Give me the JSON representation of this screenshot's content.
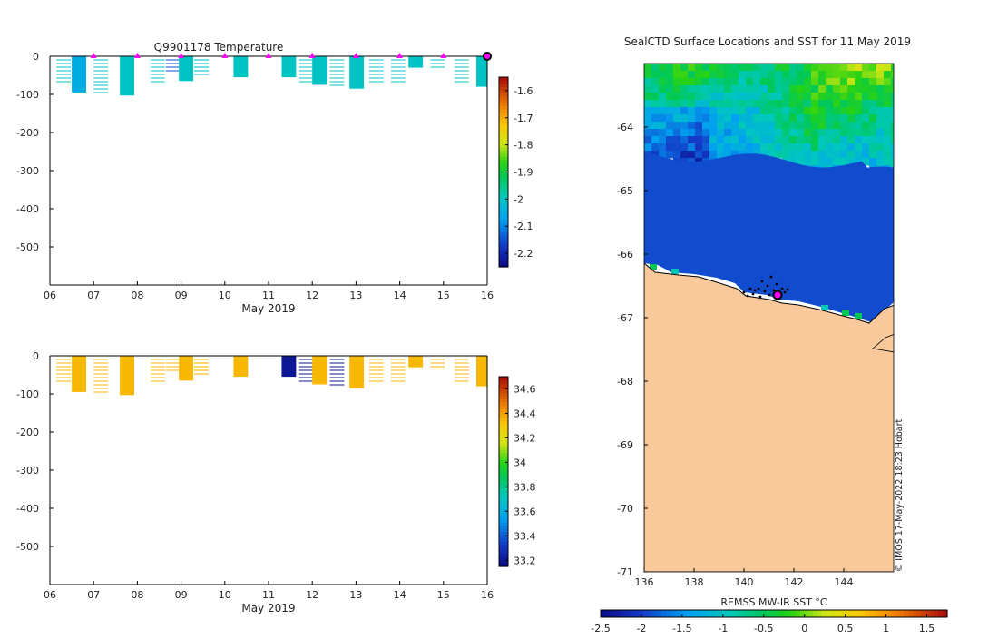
{
  "chart_data": [
    {
      "id": "temperature",
      "type": "heatmap",
      "title": "Q9901178  Temperature",
      "xlabel": "May 2019",
      "ylabel": "",
      "x_tick_labels": [
        "06",
        "07",
        "08",
        "09",
        "10",
        "11",
        "12",
        "13",
        "14",
        "15",
        "16"
      ],
      "xlim": [
        6,
        16
      ],
      "ylim": [
        -600,
        0
      ],
      "y_ticks": [
        0,
        -100,
        -200,
        -300,
        -400,
        -500
      ],
      "colorbar": {
        "min": -2.25,
        "max": -1.55,
        "ticks": [
          -1.6,
          -1.7,
          -1.8,
          -1.9,
          -2,
          -2.1,
          -2.2
        ]
      },
      "surface_markers_days": [
        7,
        8,
        9,
        10,
        11,
        12,
        13,
        14,
        15
      ],
      "current_position_day": 16,
      "profiles": [
        {
          "day": 6.15,
          "depth": 70,
          "value": -2.0,
          "style": "lines"
        },
        {
          "day": 6.5,
          "depth": 95,
          "value": -2.05,
          "style": "solid"
        },
        {
          "day": 7.0,
          "depth": 100,
          "value": -2.0,
          "style": "lines"
        },
        {
          "day": 7.6,
          "depth": 103,
          "value": -2.0,
          "style": "solid"
        },
        {
          "day": 8.3,
          "depth": 70,
          "value": -2.0,
          "style": "lines"
        },
        {
          "day": 8.65,
          "depth": 40,
          "value": -2.15,
          "style": "lines"
        },
        {
          "day": 8.95,
          "depth": 65,
          "value": -2.0,
          "style": "solid"
        },
        {
          "day": 9.3,
          "depth": 50,
          "value": -2.0,
          "style": "lines"
        },
        {
          "day": 10.2,
          "depth": 55,
          "value": -2.0,
          "style": "solid"
        },
        {
          "day": 11.3,
          "depth": 55,
          "value": -2.0,
          "style": "solid"
        },
        {
          "day": 11.7,
          "depth": 70,
          "value": -2.0,
          "style": "lines"
        },
        {
          "day": 12.0,
          "depth": 75,
          "value": -2.0,
          "style": "solid"
        },
        {
          "day": 12.4,
          "depth": 78,
          "value": -2.0,
          "style": "lines"
        },
        {
          "day": 12.85,
          "depth": 85,
          "value": -2.0,
          "style": "solid"
        },
        {
          "day": 13.3,
          "depth": 75,
          "value": -2.0,
          "style": "lines"
        },
        {
          "day": 13.8,
          "depth": 70,
          "value": -2.0,
          "style": "lines"
        },
        {
          "day": 14.2,
          "depth": 30,
          "value": -2.0,
          "style": "solid"
        },
        {
          "day": 14.7,
          "depth": 30,
          "value": -2.0,
          "style": "lines"
        },
        {
          "day": 15.25,
          "depth": 70,
          "value": -2.0,
          "style": "lines"
        },
        {
          "day": 15.75,
          "depth": 80,
          "value": -2.0,
          "style": "solid"
        }
      ]
    },
    {
      "id": "salinity",
      "type": "heatmap",
      "title": "",
      "xlabel": "May 2019",
      "ylabel": "",
      "x_tick_labels": [
        "06",
        "07",
        "08",
        "09",
        "10",
        "11",
        "12",
        "13",
        "14",
        "15",
        "16"
      ],
      "xlim": [
        6,
        16
      ],
      "ylim": [
        -600,
        0
      ],
      "y_ticks": [
        0,
        -100,
        -200,
        -300,
        -400,
        -500
      ],
      "colorbar": {
        "min": 33.15,
        "max": 34.7,
        "ticks": [
          34.6,
          34.4,
          34.2,
          34,
          33.8,
          33.6,
          33.4,
          33.2
        ]
      },
      "profiles": [
        {
          "day": 6.15,
          "depth": 70,
          "value": 34.35,
          "style": "lines"
        },
        {
          "day": 6.5,
          "depth": 95,
          "value": 34.35,
          "style": "solid"
        },
        {
          "day": 7.0,
          "depth": 100,
          "value": 34.35,
          "style": "lines"
        },
        {
          "day": 7.6,
          "depth": 103,
          "value": 34.35,
          "style": "solid"
        },
        {
          "day": 8.3,
          "depth": 70,
          "value": 34.35,
          "style": "lines"
        },
        {
          "day": 8.65,
          "depth": 40,
          "value": 34.35,
          "style": "lines"
        },
        {
          "day": 8.95,
          "depth": 65,
          "value": 34.35,
          "style": "solid"
        },
        {
          "day": 9.3,
          "depth": 50,
          "value": 34.35,
          "style": "lines"
        },
        {
          "day": 10.2,
          "depth": 55,
          "value": 34.35,
          "style": "solid"
        },
        {
          "day": 11.3,
          "depth": 55,
          "value": 33.2,
          "style": "solid"
        },
        {
          "day": 11.7,
          "depth": 70,
          "value": 33.2,
          "style": "lines"
        },
        {
          "day": 12.0,
          "depth": 75,
          "value": 34.35,
          "style": "solid"
        },
        {
          "day": 12.4,
          "depth": 78,
          "value": 33.2,
          "style": "lines"
        },
        {
          "day": 12.85,
          "depth": 85,
          "value": 34.35,
          "style": "solid"
        },
        {
          "day": 13.3,
          "depth": 75,
          "value": 34.35,
          "style": "lines"
        },
        {
          "day": 13.8,
          "depth": 70,
          "value": 34.35,
          "style": "lines"
        },
        {
          "day": 14.2,
          "depth": 30,
          "value": 34.35,
          "style": "solid"
        },
        {
          "day": 14.7,
          "depth": 30,
          "value": 34.35,
          "style": "lines"
        },
        {
          "day": 15.25,
          "depth": 70,
          "value": 34.35,
          "style": "lines"
        },
        {
          "day": 15.75,
          "depth": 80,
          "value": 34.35,
          "style": "solid"
        }
      ]
    },
    {
      "id": "sst-map",
      "type": "heatmap",
      "title": "SealCTD Surface Locations and SST for 11 May 2019",
      "xlabel": "",
      "ylabel": "",
      "x_ticks": [
        136,
        138,
        140,
        142,
        144
      ],
      "y_ticks": [
        -64,
        -65,
        -66,
        -67,
        -68,
        -69,
        -70,
        -71
      ],
      "xlim": [
        136,
        146
      ],
      "ylim": [
        -71,
        -63
      ],
      "colorbar": {
        "label": "REMSS MW-IR SST °C",
        "min": -2.5,
        "max": 1.75,
        "tick_labels": [
          "-2.5",
          "-2",
          "-1.5",
          "-1",
          "-0.5",
          "0",
          "0.5",
          "1",
          "1.5"
        ]
      },
      "credit": "© IMOS 17-May-2022 18:23 Hobart",
      "seal_position": {
        "lon": 141.4,
        "lat": -66.65
      },
      "sst_regions": [
        {
          "name": "open-ocean",
          "lat_range": [
            -64.6,
            -63
          ],
          "sst_range": [
            -1.0,
            0.2
          ]
        },
        {
          "name": "sea-ice-edge",
          "lat_range": [
            -66.4,
            -64.6
          ],
          "sst": -1.9
        },
        {
          "name": "antarctic-land",
          "lat_range": [
            -71,
            -66.2
          ],
          "sst": null
        }
      ]
    }
  ]
}
